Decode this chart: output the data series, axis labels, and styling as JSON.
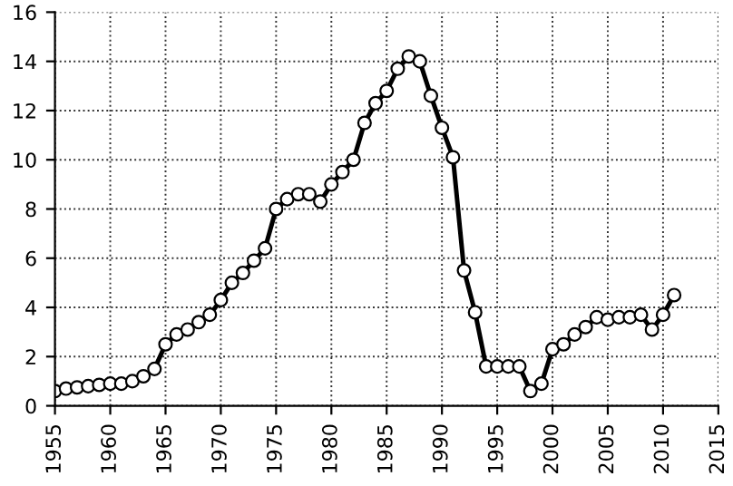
{
  "chart_data": {
    "type": "line",
    "x": [
      1955,
      1956,
      1957,
      1958,
      1959,
      1960,
      1961,
      1962,
      1963,
      1964,
      1965,
      1966,
      1967,
      1968,
      1969,
      1970,
      1971,
      1972,
      1973,
      1974,
      1975,
      1976,
      1977,
      1978,
      1979,
      1980,
      1981,
      1982,
      1983,
      1984,
      1985,
      1986,
      1987,
      1988,
      1989,
      1990,
      1991,
      1992,
      1993,
      1994,
      1995,
      1996,
      1997,
      1998,
      1999,
      2000,
      2001,
      2002,
      2003,
      2004,
      2005,
      2006,
      2007,
      2008,
      2009,
      2010,
      2011
    ],
    "series": [
      {
        "color": "#000000",
        "values": [
          0.6,
          0.7,
          0.75,
          0.8,
          0.85,
          0.9,
          0.9,
          1.0,
          1.2,
          1.5,
          2.5,
          2.9,
          3.1,
          3.4,
          3.7,
          4.3,
          5.0,
          5.4,
          5.9,
          6.4,
          8.0,
          8.4,
          8.6,
          8.6,
          8.3,
          9.0,
          9.5,
          10.0,
          11.5,
          12.3,
          12.8,
          13.7,
          14.2,
          14.0,
          12.6,
          11.3,
          10.1,
          5.5,
          3.8,
          1.6,
          1.6,
          1.6,
          1.6,
          0.6,
          0.9,
          2.3,
          2.5,
          2.9,
          3.2,
          3.6,
          3.5,
          3.6,
          3.6,
          3.7,
          3.1,
          3.7,
          4.5
        ]
      }
    ],
    "xlim": [
      1955,
      2015
    ],
    "xticks": [
      1955,
      1960,
      1965,
      1970,
      1975,
      1980,
      1985,
      1990,
      1995,
      2000,
      2005,
      2010,
      2015
    ],
    "ylim": [
      0,
      16
    ],
    "yticks": [
      0,
      2,
      4,
      6,
      8,
      10,
      12,
      14,
      16
    ],
    "grid": true,
    "marker": "circle",
    "line_style": "solid",
    "legend": false
  }
}
